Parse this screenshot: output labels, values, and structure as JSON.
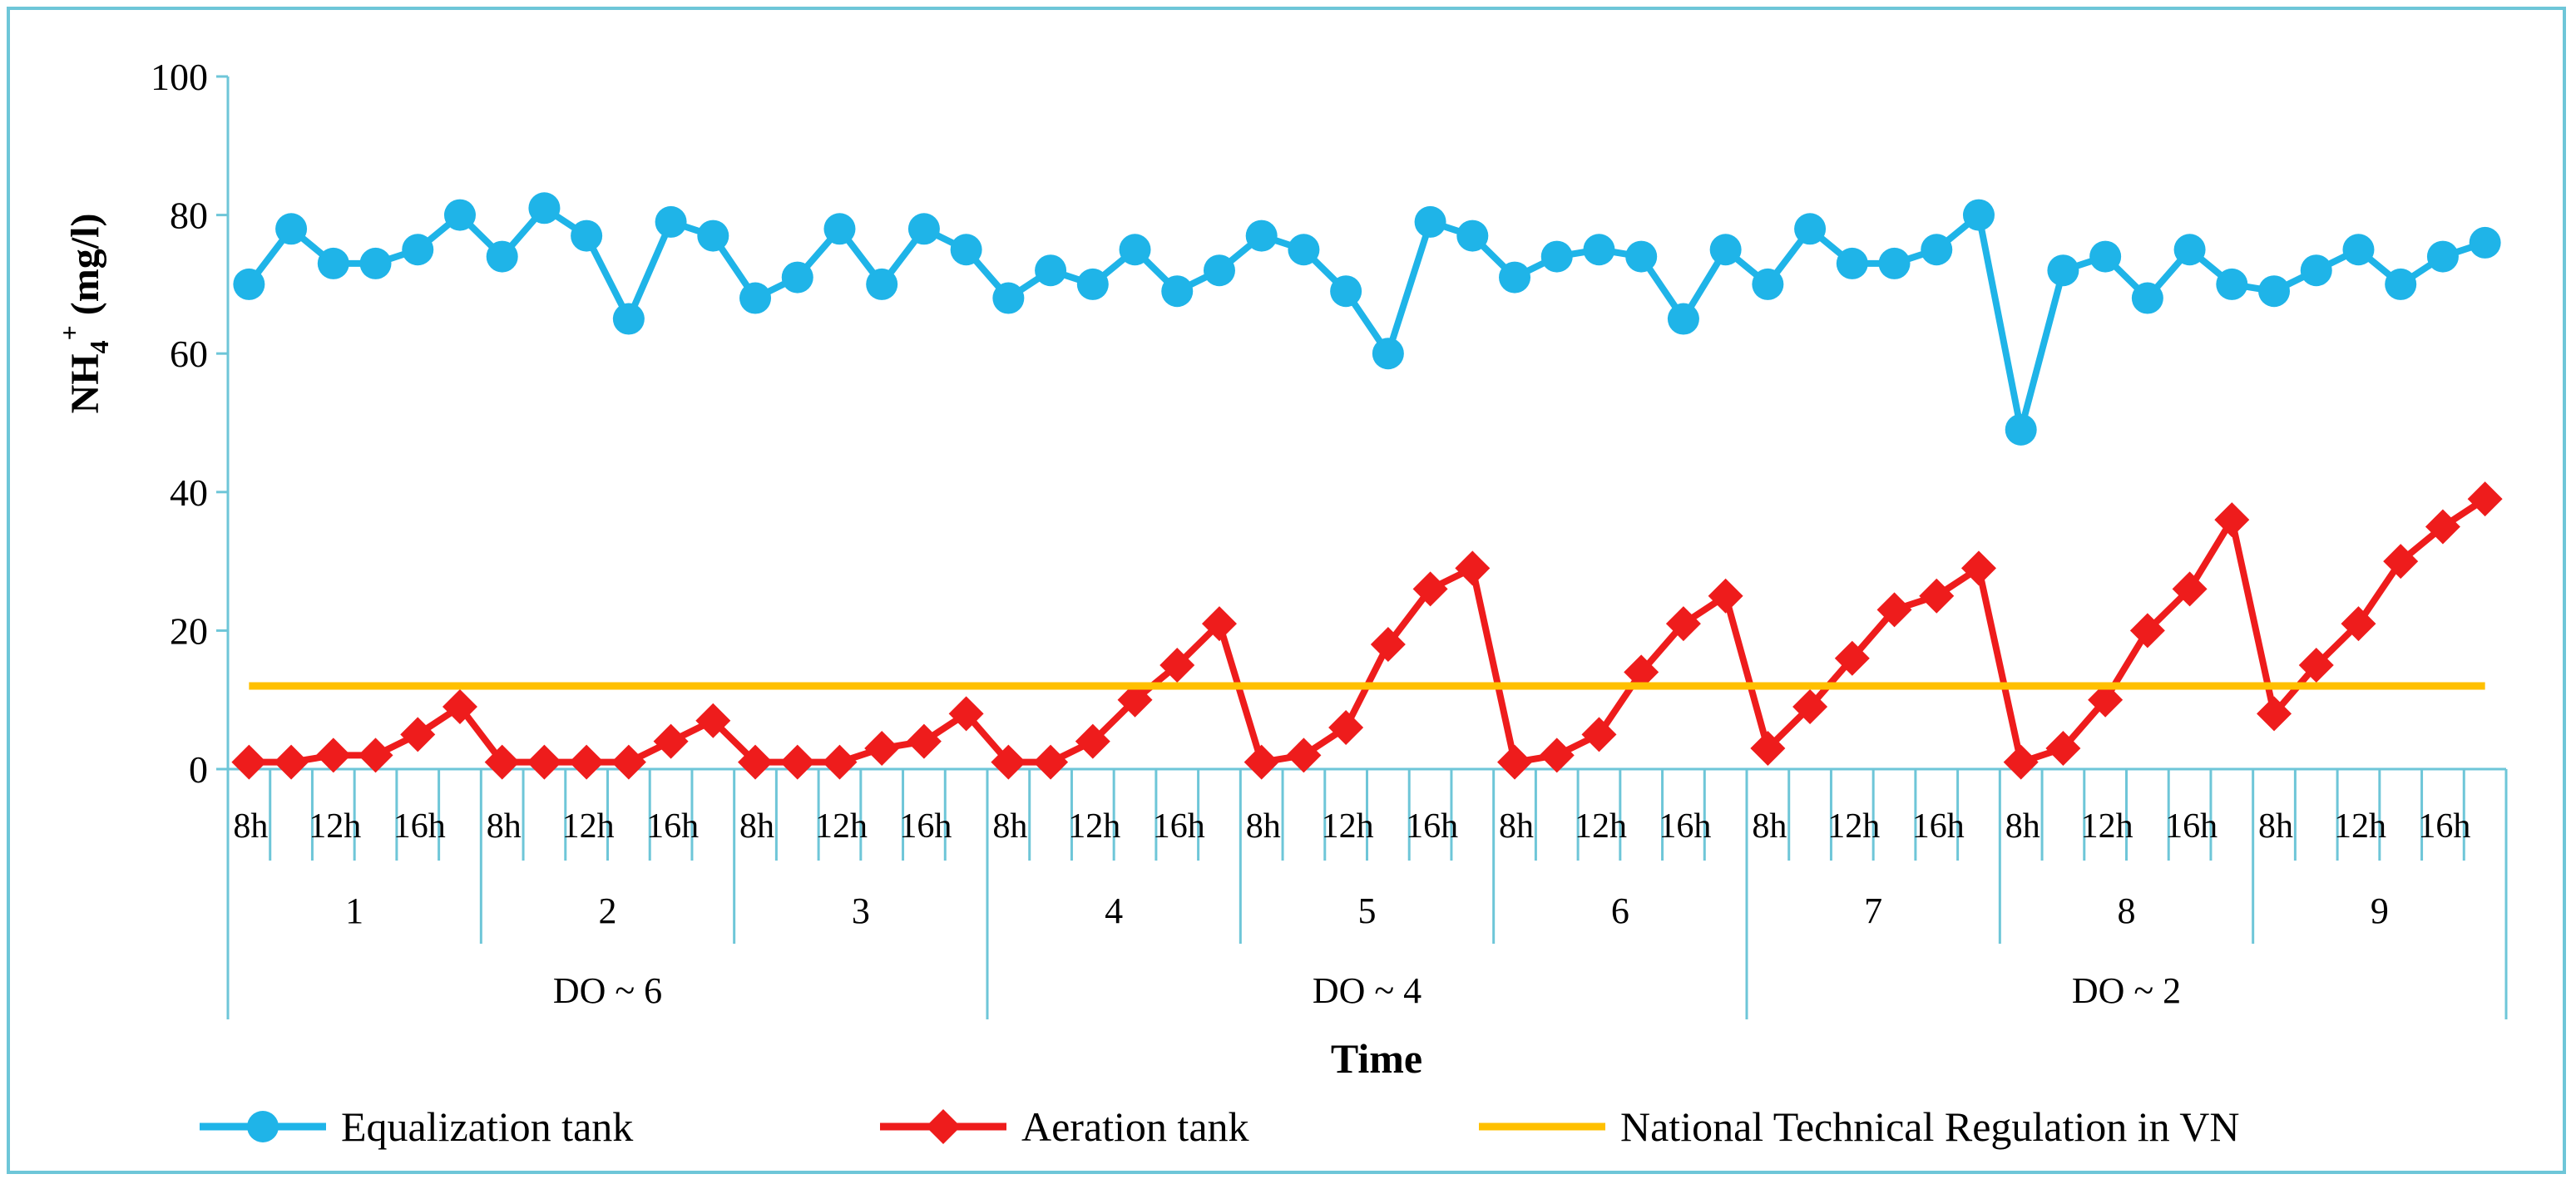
{
  "chart_data": {
    "type": "line",
    "ylabel_main": "NH",
    "ylabel_sub": "4",
    "ylabel_sup": "+",
    "ylabel_rest": " (mg/l)",
    "xlabel": "Time",
    "ylim": [
      0,
      100
    ],
    "yticks": [
      "0",
      "20",
      "40",
      "60",
      "80",
      "100"
    ],
    "grid": false,
    "legend_position": "bottom",
    "hour_labels": [
      "8h",
      "",
      "12h",
      "",
      "16h",
      ""
    ],
    "days": [
      "1",
      "2",
      "3",
      "4",
      "5",
      "6",
      "7",
      "8",
      "9"
    ],
    "do_groups": [
      {
        "label": "DO ~ 6",
        "days": 3
      },
      {
        "label": "DO ~ 4",
        "days": 3
      },
      {
        "label": "DO ~ 2",
        "days": 3
      }
    ],
    "series": [
      {
        "name": "Equalization tank",
        "color": "#1fb4e8",
        "marker": "circle",
        "values": [
          70,
          78,
          73,
          73,
          75,
          80,
          74,
          81,
          77,
          65,
          79,
          77,
          68,
          71,
          78,
          70,
          78,
          75,
          68,
          72,
          70,
          75,
          69,
          72,
          77,
          75,
          69,
          60,
          79,
          77,
          71,
          74,
          75,
          74,
          65,
          75,
          70,
          78,
          73,
          73,
          75,
          80,
          49,
          72,
          74,
          68,
          75,
          70,
          69,
          72,
          75,
          70,
          74,
          76
        ]
      },
      {
        "name": "Aeration tank",
        "color": "#ee1c1c",
        "marker": "diamond",
        "values": [
          1,
          1,
          2,
          2,
          5,
          9,
          1,
          1,
          1,
          1,
          4,
          7,
          1,
          1,
          1,
          3,
          4,
          8,
          1,
          1,
          4,
          10,
          15,
          21,
          1,
          2,
          6,
          18,
          26,
          29,
          1,
          2,
          5,
          14,
          21,
          25,
          3,
          9,
          16,
          23,
          25,
          29,
          1,
          3,
          10,
          20,
          26,
          36,
          8,
          15,
          21,
          30,
          35,
          39
        ]
      },
      {
        "name": "National Technical Regulation in VN",
        "color": "#ffc000",
        "marker": "none",
        "constant": 12
      }
    ]
  }
}
